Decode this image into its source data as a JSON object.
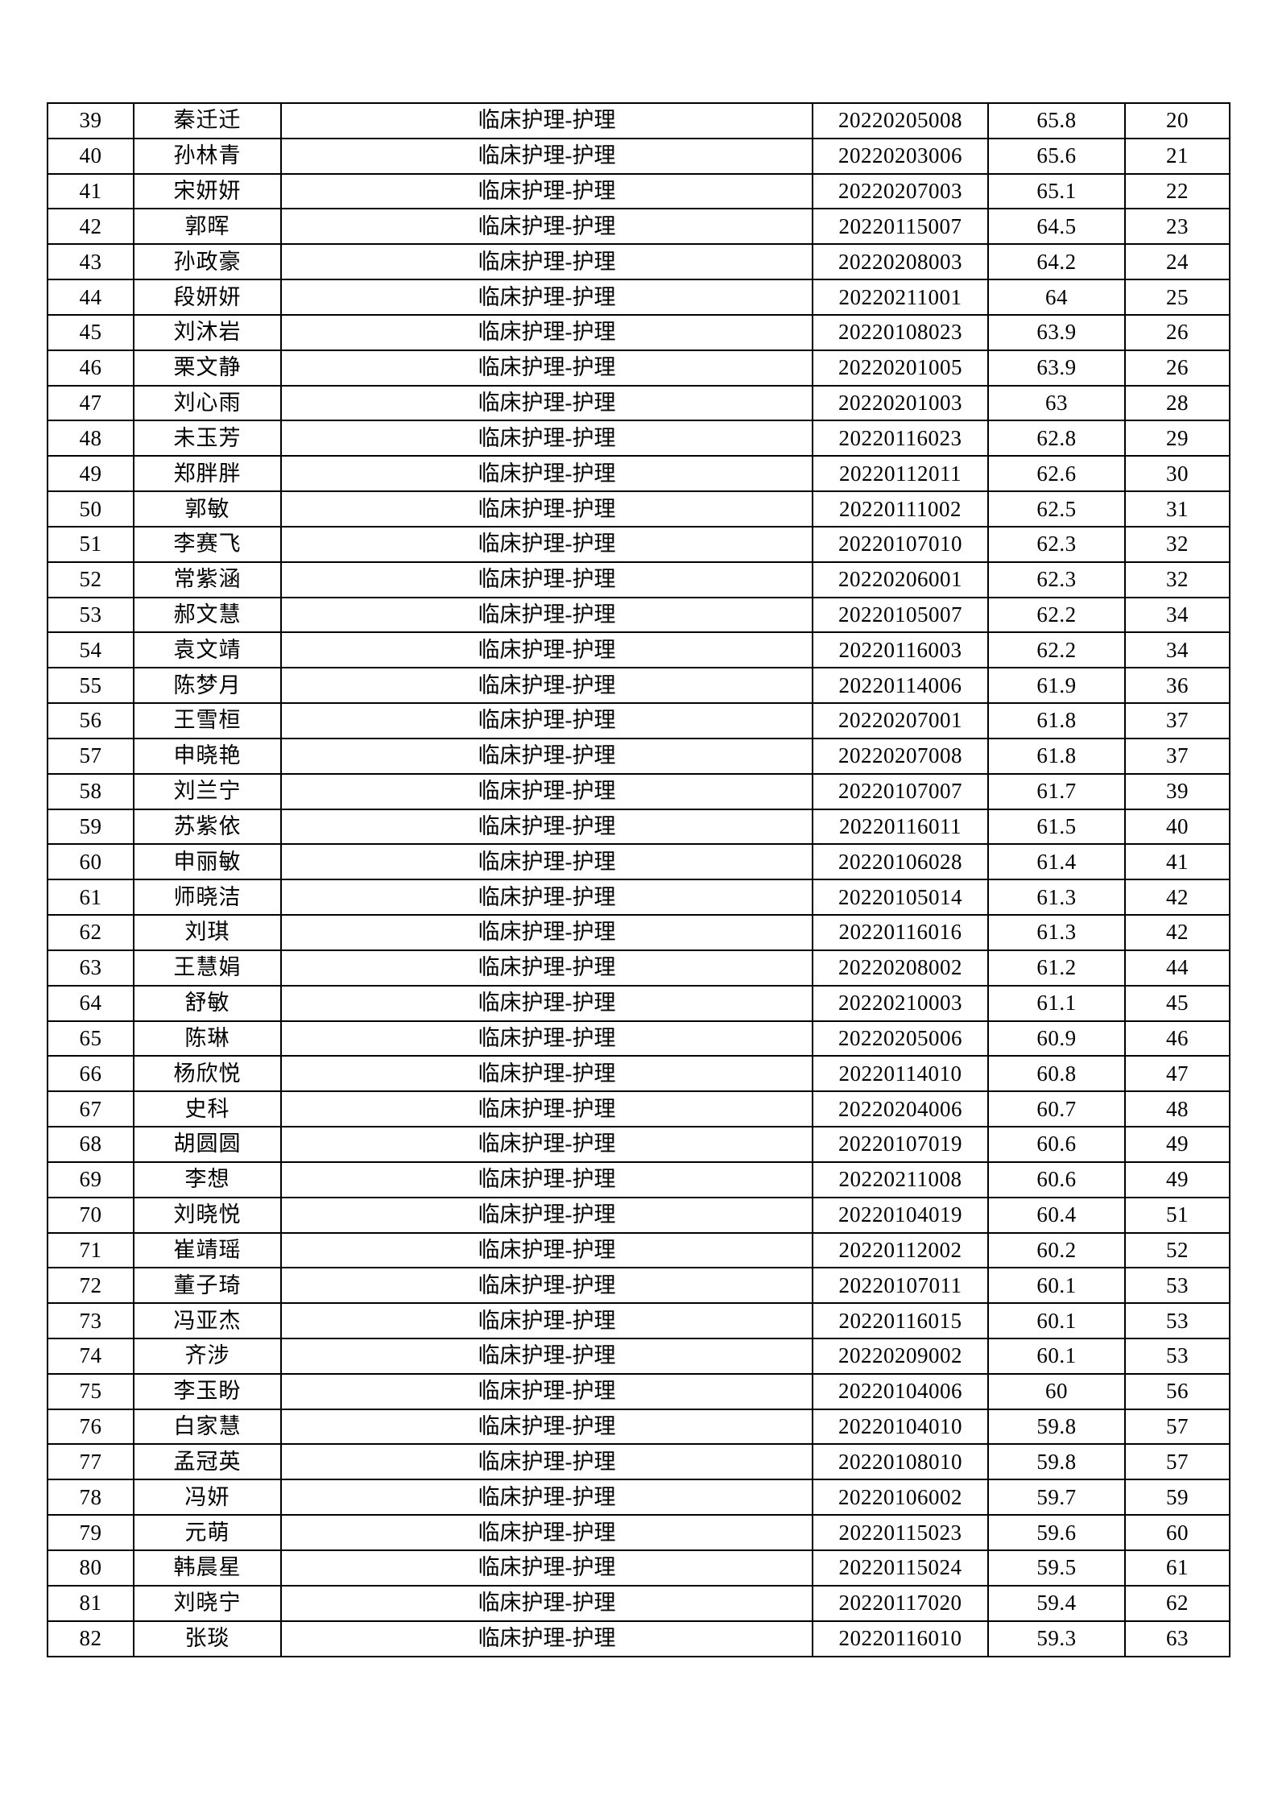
{
  "document": {
    "type": "exam-score-ranking-table-page",
    "position_label": "临床护理-护理",
    "text_color": "#000000",
    "page_background": "#ffffff",
    "border_color": "#000000"
  },
  "table": {
    "row_keys": [
      "no",
      "name",
      "position",
      "exam_no",
      "score",
      "rank"
    ],
    "rows": [
      {
        "no": "39",
        "name": "秦迁迁",
        "position": "临床护理-护理",
        "exam_no": "20220205008",
        "score": "65.8",
        "rank": "20"
      },
      {
        "no": "40",
        "name": "孙林青",
        "position": "临床护理-护理",
        "exam_no": "20220203006",
        "score": "65.6",
        "rank": "21"
      },
      {
        "no": "41",
        "name": "宋妍妍",
        "position": "临床护理-护理",
        "exam_no": "20220207003",
        "score": "65.1",
        "rank": "22"
      },
      {
        "no": "42",
        "name": "郭晖",
        "position": "临床护理-护理",
        "exam_no": "20220115007",
        "score": "64.5",
        "rank": "23"
      },
      {
        "no": "43",
        "name": "孙政豪",
        "position": "临床护理-护理",
        "exam_no": "20220208003",
        "score": "64.2",
        "rank": "24"
      },
      {
        "no": "44",
        "name": "段妍妍",
        "position": "临床护理-护理",
        "exam_no": "20220211001",
        "score": "64",
        "rank": "25"
      },
      {
        "no": "45",
        "name": "刘沐岩",
        "position": "临床护理-护理",
        "exam_no": "20220108023",
        "score": "63.9",
        "rank": "26"
      },
      {
        "no": "46",
        "name": "栗文静",
        "position": "临床护理-护理",
        "exam_no": "20220201005",
        "score": "63.9",
        "rank": "26"
      },
      {
        "no": "47",
        "name": "刘心雨",
        "position": "临床护理-护理",
        "exam_no": "20220201003",
        "score": "63",
        "rank": "28"
      },
      {
        "no": "48",
        "name": "未玉芳",
        "position": "临床护理-护理",
        "exam_no": "20220116023",
        "score": "62.8",
        "rank": "29"
      },
      {
        "no": "49",
        "name": "郑胖胖",
        "position": "临床护理-护理",
        "exam_no": "20220112011",
        "score": "62.6",
        "rank": "30"
      },
      {
        "no": "50",
        "name": "郭敏",
        "position": "临床护理-护理",
        "exam_no": "20220111002",
        "score": "62.5",
        "rank": "31"
      },
      {
        "no": "51",
        "name": "李赛飞",
        "position": "临床护理-护理",
        "exam_no": "20220107010",
        "score": "62.3",
        "rank": "32"
      },
      {
        "no": "52",
        "name": "常紫涵",
        "position": "临床护理-护理",
        "exam_no": "20220206001",
        "score": "62.3",
        "rank": "32"
      },
      {
        "no": "53",
        "name": "郝文慧",
        "position": "临床护理-护理",
        "exam_no": "20220105007",
        "score": "62.2",
        "rank": "34"
      },
      {
        "no": "54",
        "name": "袁文靖",
        "position": "临床护理-护理",
        "exam_no": "20220116003",
        "score": "62.2",
        "rank": "34"
      },
      {
        "no": "55",
        "name": "陈梦月",
        "position": "临床护理-护理",
        "exam_no": "20220114006",
        "score": "61.9",
        "rank": "36"
      },
      {
        "no": "56",
        "name": "王雪桓",
        "position": "临床护理-护理",
        "exam_no": "20220207001",
        "score": "61.8",
        "rank": "37"
      },
      {
        "no": "57",
        "name": "申晓艳",
        "position": "临床护理-护理",
        "exam_no": "20220207008",
        "score": "61.8",
        "rank": "37"
      },
      {
        "no": "58",
        "name": "刘兰宁",
        "position": "临床护理-护理",
        "exam_no": "20220107007",
        "score": "61.7",
        "rank": "39"
      },
      {
        "no": "59",
        "name": "苏紫依",
        "position": "临床护理-护理",
        "exam_no": "20220116011",
        "score": "61.5",
        "rank": "40"
      },
      {
        "no": "60",
        "name": "申丽敏",
        "position": "临床护理-护理",
        "exam_no": "20220106028",
        "score": "61.4",
        "rank": "41"
      },
      {
        "no": "61",
        "name": "师晓洁",
        "position": "临床护理-护理",
        "exam_no": "20220105014",
        "score": "61.3",
        "rank": "42"
      },
      {
        "no": "62",
        "name": "刘琪",
        "position": "临床护理-护理",
        "exam_no": "20220116016",
        "score": "61.3",
        "rank": "42"
      },
      {
        "no": "63",
        "name": "王慧娟",
        "position": "临床护理-护理",
        "exam_no": "20220208002",
        "score": "61.2",
        "rank": "44"
      },
      {
        "no": "64",
        "name": "舒敏",
        "position": "临床护理-护理",
        "exam_no": "20220210003",
        "score": "61.1",
        "rank": "45"
      },
      {
        "no": "65",
        "name": "陈琳",
        "position": "临床护理-护理",
        "exam_no": "20220205006",
        "score": "60.9",
        "rank": "46"
      },
      {
        "no": "66",
        "name": "杨欣悦",
        "position": "临床护理-护理",
        "exam_no": "20220114010",
        "score": "60.8",
        "rank": "47"
      },
      {
        "no": "67",
        "name": "史科",
        "position": "临床护理-护理",
        "exam_no": "20220204006",
        "score": "60.7",
        "rank": "48"
      },
      {
        "no": "68",
        "name": "胡圆圆",
        "position": "临床护理-护理",
        "exam_no": "20220107019",
        "score": "60.6",
        "rank": "49"
      },
      {
        "no": "69",
        "name": "李想",
        "position": "临床护理-护理",
        "exam_no": "20220211008",
        "score": "60.6",
        "rank": "49"
      },
      {
        "no": "70",
        "name": "刘晓悦",
        "position": "临床护理-护理",
        "exam_no": "20220104019",
        "score": "60.4",
        "rank": "51"
      },
      {
        "no": "71",
        "name": "崔靖瑶",
        "position": "临床护理-护理",
        "exam_no": "20220112002",
        "score": "60.2",
        "rank": "52"
      },
      {
        "no": "72",
        "name": "董子琦",
        "position": "临床护理-护理",
        "exam_no": "20220107011",
        "score": "60.1",
        "rank": "53"
      },
      {
        "no": "73",
        "name": "冯亚杰",
        "position": "临床护理-护理",
        "exam_no": "20220116015",
        "score": "60.1",
        "rank": "53"
      },
      {
        "no": "74",
        "name": "齐涉",
        "position": "临床护理-护理",
        "exam_no": "20220209002",
        "score": "60.1",
        "rank": "53"
      },
      {
        "no": "75",
        "name": "李玉盼",
        "position": "临床护理-护理",
        "exam_no": "20220104006",
        "score": "60",
        "rank": "56"
      },
      {
        "no": "76",
        "name": "白家慧",
        "position": "临床护理-护理",
        "exam_no": "20220104010",
        "score": "59.8",
        "rank": "57"
      },
      {
        "no": "77",
        "name": "孟冠英",
        "position": "临床护理-护理",
        "exam_no": "20220108010",
        "score": "59.8",
        "rank": "57"
      },
      {
        "no": "78",
        "name": "冯妍",
        "position": "临床护理-护理",
        "exam_no": "20220106002",
        "score": "59.7",
        "rank": "59"
      },
      {
        "no": "79",
        "name": "元萌",
        "position": "临床护理-护理",
        "exam_no": "20220115023",
        "score": "59.6",
        "rank": "60"
      },
      {
        "no": "80",
        "name": "韩晨星",
        "position": "临床护理-护理",
        "exam_no": "20220115024",
        "score": "59.5",
        "rank": "61"
      },
      {
        "no": "81",
        "name": "刘晓宁",
        "position": "临床护理-护理",
        "exam_no": "20220117020",
        "score": "59.4",
        "rank": "62"
      },
      {
        "no": "82",
        "name": "张琰",
        "position": "临床护理-护理",
        "exam_no": "20220116010",
        "score": "59.3",
        "rank": "63"
      }
    ]
  }
}
